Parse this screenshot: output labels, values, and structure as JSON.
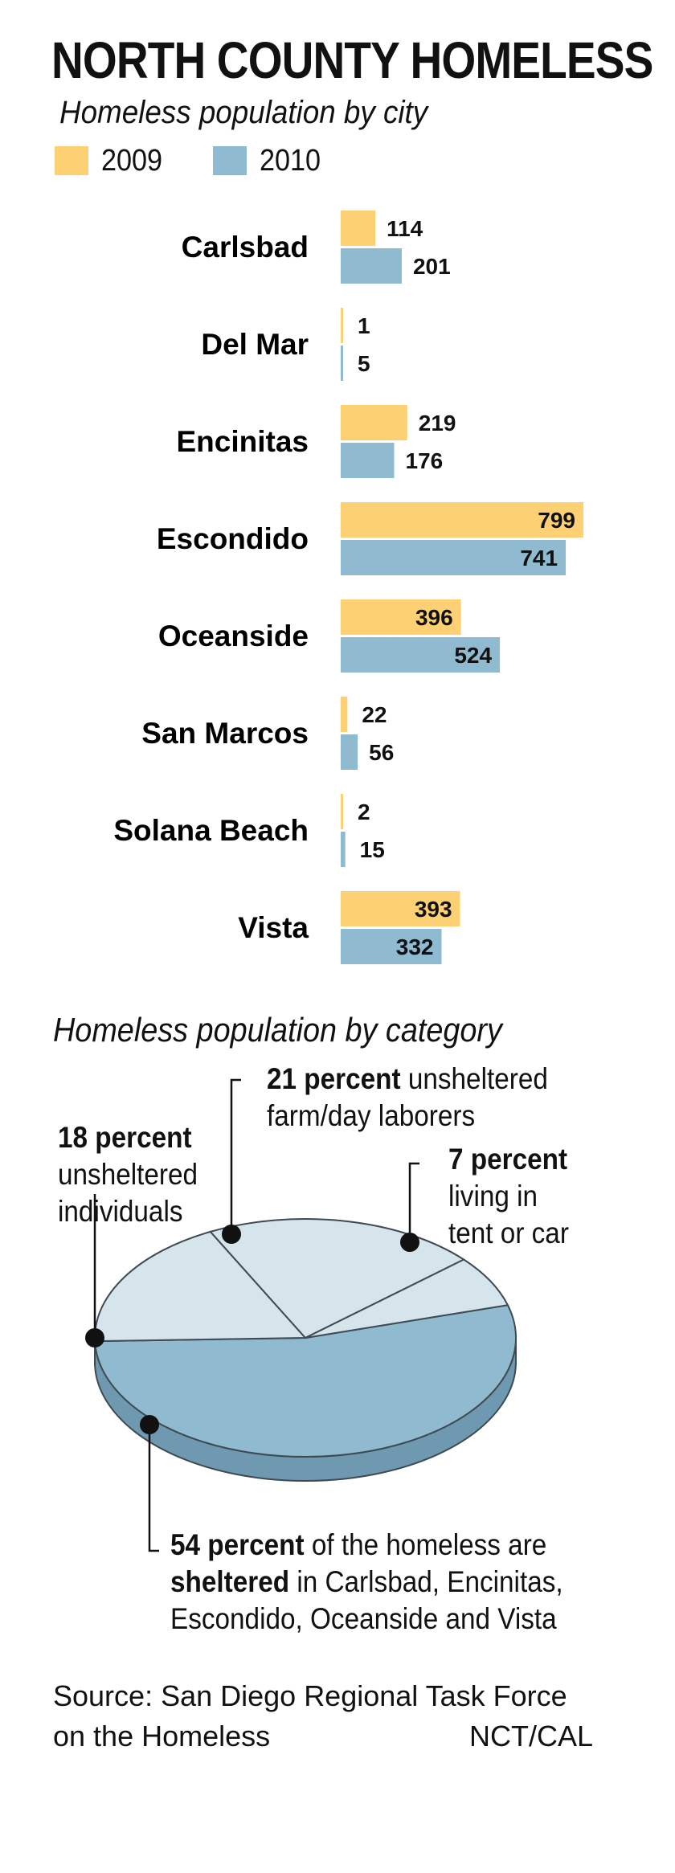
{
  "title": "NORTH COUNTY HOMELESS",
  "chart_data": [
    {
      "type": "bar",
      "title": "Homeless population by city",
      "orientation": "horizontal",
      "categories": [
        "Carlsbad",
        "Del Mar",
        "Encinitas",
        "Escondido",
        "Oceanside",
        "San Marcos",
        "Solana Beach",
        "Vista"
      ],
      "series": [
        {
          "name": "2009",
          "color": "#fdd073",
          "values": [
            114,
            1,
            219,
            799,
            396,
            22,
            2,
            393
          ]
        },
        {
          "name": "2010",
          "color": "#8fbad0",
          "values": [
            201,
            5,
            176,
            741,
            524,
            56,
            15,
            332
          ]
        }
      ],
      "legend": "top-left",
      "xlim": [
        0,
        799
      ],
      "axes_visible": false,
      "grid": false
    },
    {
      "type": "pie",
      "title": "Homeless population by category",
      "style": "3d",
      "slices": [
        {
          "label": "sheltered",
          "value": 54,
          "color": "#8fbad0"
        },
        {
          "label": "unsheltered individuals",
          "value": 18,
          "color": "#d6e4ec"
        },
        {
          "label": "unsheltered farm/day laborers",
          "value": 21,
          "color": "#d6e4ec"
        },
        {
          "label": "living in tent or car",
          "value": 7,
          "color": "#d6e4ec"
        }
      ]
    }
  ],
  "annotations": {
    "farm": {
      "bold": "21 percent",
      "text": " unsheltered",
      "line2": "farm/day laborers"
    },
    "individuals": {
      "bold": "18 percent",
      "line2": "unsheltered",
      "line3": "individuals"
    },
    "tent": {
      "bold": "7 percent",
      "line2": "living in",
      "line3": "tent or car"
    },
    "sheltered": {
      "bold": "54 percent",
      "text": " of the homeless are",
      "bold2": "sheltered",
      "text2": " in Carlsbad, Encinitas,",
      "line3": "Escondido, Oceanside and Vista"
    }
  },
  "source": {
    "line1": "Source: San Diego Regional Task Force",
    "line2": "on the Homeless",
    "credit": "NCT/CAL"
  }
}
